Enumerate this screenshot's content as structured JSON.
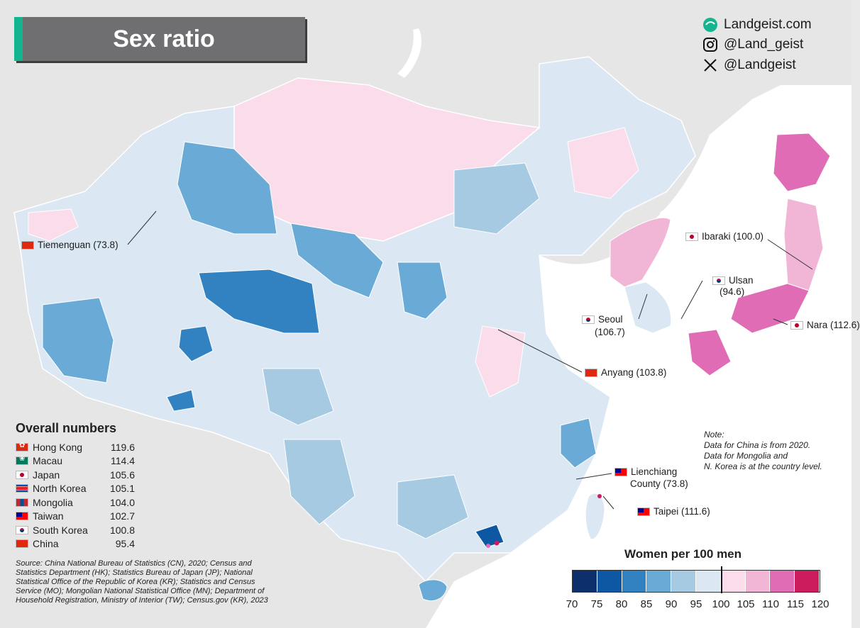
{
  "title": "Sex ratio",
  "social": {
    "website": "Landgeist.com",
    "instagram": "@Land_geist",
    "x": "@Landgeist"
  },
  "colors": {
    "sea": "#ffffff",
    "land_other": "#e6e6e6",
    "bins": [
      "#0d2f6b",
      "#0d57a3",
      "#3282c2",
      "#6aaad6",
      "#a7cae3",
      "#dbe7f3",
      "#fbdcea",
      "#f1b6d6",
      "#e06cb5",
      "#cd1c5e"
    ]
  },
  "city_labels": {
    "tiemenguan": "Tiemenguan (73.8)",
    "ibaraki": "Ibaraki (100.0)",
    "ulsan_name": "Ulsan",
    "ulsan_value": "(94.6)",
    "seoul_name": "Seoul",
    "seoul_value": "(106.7)",
    "nara": "Nara (112.6)",
    "anyang": "Anyang (103.8)",
    "lienchiang_name": "Lienchiang",
    "lienchiang_value": "County (73.8)",
    "taipei": "Taipei (111.6)"
  },
  "overall": {
    "heading": "Overall numbers",
    "rows": [
      {
        "name": "Hong Kong",
        "value": "119.6",
        "flag": "hk"
      },
      {
        "name": "Macau",
        "value": "114.4",
        "flag": "mo"
      },
      {
        "name": "Japan",
        "value": "105.6",
        "flag": "jp"
      },
      {
        "name": "North Korea",
        "value": "105.1",
        "flag": "kp"
      },
      {
        "name": "Mongolia",
        "value": "104.0",
        "flag": "mn"
      },
      {
        "name": "Taiwan",
        "value": "102.7",
        "flag": "tw"
      },
      {
        "name": "South Korea",
        "value": "100.8",
        "flag": "kr"
      },
      {
        "name": "China",
        "value": "95.4",
        "flag": "cn"
      }
    ]
  },
  "source": "Source: China National Bureau of Statistics (CN), 2020; Census and Statistics Department (HK); Statistics Bureau of Japan (JP); National Statistical Office of the Republic of Korea (KR); Statistics and Census Service (MO); Mongolian National Statistical Office (MN); Department of Household Registration, Ministry of Interior (TW); Census.gov (KR), 2023",
  "note": {
    "line1": "Note:",
    "line2": "Data for China is from 2020.",
    "line3": "Data for Mongolia and",
    "line4": "N. Korea is at the country level."
  },
  "legend": {
    "title": "Women per 100 men",
    "ticks": [
      "70",
      "75",
      "80",
      "85",
      "90",
      "95",
      "100",
      "105",
      "110",
      "115",
      "120"
    ]
  }
}
